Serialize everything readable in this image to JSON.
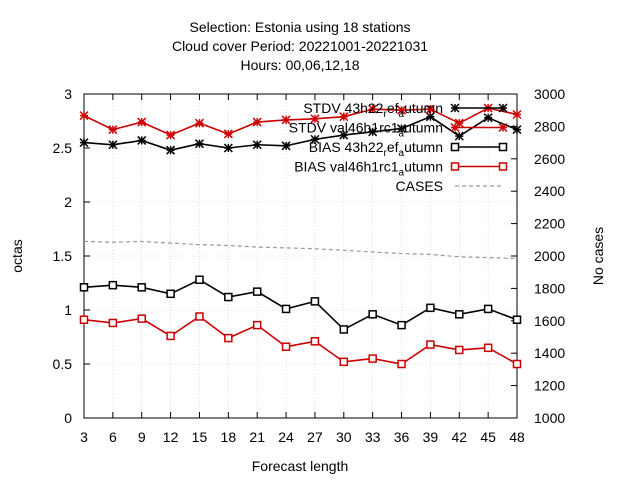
{
  "chart_data": {
    "type": "line",
    "title": [
      "Selection: Estonia using    18 stations",
      "Cloud cover   Period: 20221001-20221031",
      "Hours:  00,06,12,18"
    ],
    "xlabel": "Forecast length",
    "ylabel": "octas",
    "y2label": "No cases",
    "x": [
      3,
      6,
      9,
      12,
      15,
      18,
      21,
      24,
      27,
      30,
      33,
      36,
      39,
      42,
      45,
      48
    ],
    "xlim": [
      3,
      48
    ],
    "ylim": [
      0,
      3
    ],
    "y2lim": [
      1000,
      3000
    ],
    "yticks": [
      "0",
      "0.5",
      "1",
      "1.5",
      "2",
      "2.5",
      "3"
    ],
    "y2ticks": [
      "1000",
      "1200",
      "1400",
      "1600",
      "1800",
      "2000",
      "2200",
      "2400",
      "2600",
      "2800",
      "3000"
    ],
    "legend_position": "top-right",
    "series": [
      {
        "name": "STDV 43h22_ref_autumn",
        "legend": {
          "before": "STDV 43h22",
          "sub": "r",
          "mid": "ef",
          "sub2": "a",
          "after": "utumn"
        },
        "color": "#000000",
        "marker": "star",
        "axis": "left",
        "values": [
          2.55,
          2.53,
          2.57,
          2.48,
          2.54,
          2.5,
          2.53,
          2.52,
          2.58,
          2.62,
          2.65,
          2.68,
          2.79,
          2.61,
          2.78,
          2.67
        ]
      },
      {
        "name": "STDV val46h1rc1_autumn",
        "legend": {
          "before": "STDV val46h1rc1",
          "sub": "a",
          "mid": "utumn",
          "sub2": "",
          "after": ""
        },
        "color": "#cc0000",
        "marker": "star",
        "axis": "left",
        "values": [
          2.8,
          2.67,
          2.74,
          2.62,
          2.73,
          2.63,
          2.74,
          2.76,
          2.77,
          2.79,
          2.86,
          2.85,
          2.86,
          2.73,
          2.87,
          2.81
        ]
      },
      {
        "name": "BIAS 43h22_ref_autumn",
        "legend": {
          "before": "BIAS 43h22",
          "sub": "r",
          "mid": "ef",
          "sub2": "a",
          "after": "utumn"
        },
        "color": "#000000",
        "marker": "square",
        "axis": "left",
        "values": [
          1.21,
          1.23,
          1.21,
          1.15,
          1.28,
          1.12,
          1.17,
          1.01,
          1.08,
          0.82,
          0.96,
          0.86,
          1.02,
          0.96,
          1.01,
          0.91
        ]
      },
      {
        "name": "BIAS val46h1rc1_autumn",
        "legend": {
          "before": "BIAS val46h1rc1",
          "sub": "a",
          "mid": "utumn",
          "sub2": "",
          "after": ""
        },
        "color": "#cc0000",
        "marker": "square",
        "axis": "left",
        "values": [
          0.91,
          0.88,
          0.92,
          0.76,
          0.94,
          0.74,
          0.86,
          0.66,
          0.71,
          0.52,
          0.55,
          0.5,
          0.68,
          0.63,
          0.65,
          0.5
        ]
      },
      {
        "name": "CASES",
        "legend": {
          "before": "CASES",
          "sub": "",
          "mid": "",
          "sub2": "",
          "after": ""
        },
        "color": "#999999",
        "marker": "none",
        "dashed": true,
        "axis": "right",
        "values": [
          2090,
          2085,
          2090,
          2080,
          2070,
          2065,
          2055,
          2050,
          2045,
          2035,
          2025,
          2015,
          2010,
          1995,
          1990,
          1985
        ]
      }
    ]
  }
}
